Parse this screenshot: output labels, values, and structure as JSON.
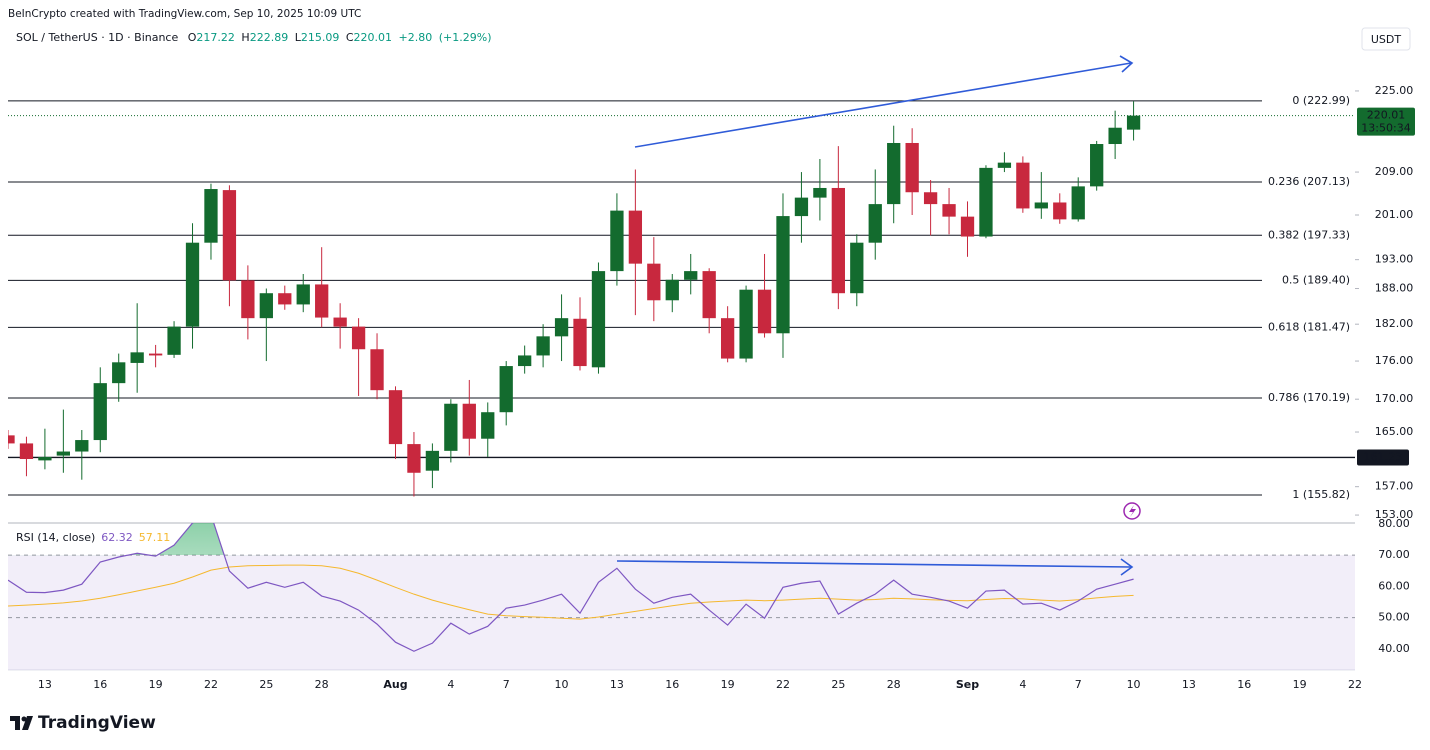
{
  "header": {
    "created": "BeInCrypto created with TradingView.com, Sep 10, 2025 10:09 UTC",
    "symbol": "SOL / TetherUS · 1D · Binance",
    "ohlc_labels": [
      "O",
      "H",
      "L",
      "C"
    ],
    "change": "+2.80",
    "change_pct": "(+1.29%)",
    "currency": "USDT",
    "logo": "TradingView"
  },
  "chart_data": [
    {
      "type": "candlestick",
      "log": true,
      "up_color": "#136b2e",
      "down_color": "#c8283e",
      "open": [
        164.5,
        163.3,
        160.8,
        161.5,
        162.1,
        163.8,
        172.5,
        175.7,
        177.2,
        177,
        181.6,
        196,
        205.6,
        189.4,
        183,
        187.2,
        185.3,
        188.7,
        183.1,
        181.6,
        177.9,
        171.4,
        163.2,
        159.3,
        162.2,
        169.3,
        164,
        168,
        175.2,
        176.9,
        180,
        182.9,
        175,
        191,
        201.8,
        192.3,
        186,
        189.5,
        191,
        183,
        176.4,
        187.8,
        180.5,
        200.8,
        204.2,
        206,
        187.2,
        196,
        203,
        214.6,
        205.2,
        203,
        200.7,
        197.1,
        209.8,
        210.8,
        202.2,
        203.3,
        200.2,
        206.3,
        214.4,
        217.22
      ],
      "high": [
        165.3,
        164.3,
        165.5,
        168.4,
        165.3,
        175,
        177.2,
        185.5,
        178.6,
        182.5,
        199.5,
        206.8,
        206.5,
        192,
        188,
        188.5,
        190.5,
        195.2,
        185.5,
        183,
        180.5,
        172,
        165,
        163.3,
        170,
        173,
        169.5,
        176,
        178.5,
        182,
        187,
        186.5,
        192.5,
        205,
        209.5,
        197,
        190.5,
        194,
        191.5,
        185,
        188.5,
        194,
        205,
        209,
        211.5,
        214,
        197.5,
        209.5,
        218,
        217.5,
        207.5,
        206,
        203.5,
        210.3,
        212.8,
        212,
        209,
        205,
        208,
        215,
        221,
        222.89
      ],
      "low": [
        162.5,
        158.5,
        159.5,
        159,
        158,
        162,
        169.6,
        171,
        175,
        176.5,
        178,
        193,
        185,
        179.5,
        176,
        184.4,
        184,
        181.5,
        178,
        170.5,
        170,
        161,
        155.6,
        156.8,
        160.5,
        161.5,
        161.3,
        166,
        174,
        175,
        176,
        174.5,
        174,
        188.5,
        183.5,
        182.5,
        184,
        187,
        180.5,
        175.8,
        175.8,
        179.8,
        176.5,
        196,
        200,
        184.5,
        185,
        193,
        199.5,
        201,
        197.3,
        197.5,
        193.5,
        196.8,
        209,
        201.4,
        200.3,
        199.4,
        199.8,
        205.5,
        211.5,
        215.09
      ],
      "close": [
        163.3,
        161.0,
        161.3,
        162.1,
        163.8,
        172.5,
        175.8,
        177.4,
        176.9,
        181.6,
        196,
        205.8,
        189.4,
        183,
        187.2,
        185.3,
        188.7,
        183.1,
        181.6,
        177.9,
        171.4,
        163.2,
        159,
        162.2,
        169.3,
        164,
        168,
        175.2,
        176.9,
        180,
        183,
        175.2,
        191,
        201.8,
        192.3,
        186,
        189.5,
        191,
        183,
        176.4,
        187.8,
        180.5,
        200.8,
        204.2,
        206,
        187.2,
        196,
        203,
        214.6,
        205.2,
        203,
        200.7,
        197.1,
        209.8,
        210.8,
        202.2,
        203.3,
        200.2,
        206.3,
        214.4,
        217.6,
        220.01
      ],
      "xlim": [
        0,
        73
      ],
      "ylim": [
        151.9,
        234.6
      ],
      "yticks": [
        {
          "value": 225,
          "label": "225.00"
        },
        {
          "value": 209,
          "label": "209.00"
        },
        {
          "value": 201,
          "label": "201.00"
        },
        {
          "value": 193,
          "label": "193.00"
        },
        {
          "value": 188,
          "label": "188.00"
        },
        {
          "value": 182,
          "label": "182.00"
        },
        {
          "value": 176,
          "label": "176.00"
        },
        {
          "value": 170,
          "label": "170.00"
        },
        {
          "value": 165,
          "label": "165.00"
        },
        {
          "value": 157,
          "label": "157.00"
        },
        {
          "value": 153,
          "label": "153.00"
        }
      ],
      "xticks": [
        {
          "value": 2,
          "label": "13"
        },
        {
          "value": 5,
          "label": "16"
        },
        {
          "value": 8,
          "label": "19"
        },
        {
          "value": 11,
          "label": "22"
        },
        {
          "value": 14,
          "label": "25"
        },
        {
          "value": 17,
          "label": "28"
        },
        {
          "value": 21,
          "label": "Aug"
        },
        {
          "value": 24,
          "label": "4"
        },
        {
          "value": 27,
          "label": "7"
        },
        {
          "value": 30,
          "label": "10"
        },
        {
          "value": 33,
          "label": "13"
        },
        {
          "value": 36,
          "label": "16"
        },
        {
          "value": 39,
          "label": "19"
        },
        {
          "value": 42,
          "label": "22"
        },
        {
          "value": 45,
          "label": "25"
        },
        {
          "value": 48,
          "label": "28"
        },
        {
          "value": 52,
          "label": "Sep"
        },
        {
          "value": 55,
          "label": "4"
        },
        {
          "value": 58,
          "label": "7"
        },
        {
          "value": 61,
          "label": "10"
        },
        {
          "value": 64,
          "label": "13"
        },
        {
          "value": 67,
          "label": "16"
        },
        {
          "value": 70,
          "label": "19"
        },
        {
          "value": 73,
          "label": "22"
        }
      ],
      "levels": [
        {
          "value": 222.99,
          "label": "0 (222.99)"
        },
        {
          "value": 207.13,
          "label": "0.236 (207.13)"
        },
        {
          "value": 197.33,
          "label": "0.382 (197.33)"
        },
        {
          "value": 189.4,
          "label": "0.5 (189.40)"
        },
        {
          "value": 181.47,
          "label": "0.618 (181.47)"
        },
        {
          "value": 170.19,
          "label": "0.786 (170.19)"
        },
        {
          "value": 155.82,
          "label": "1 (155.82)"
        }
      ],
      "hline": 161.23,
      "countdown": "13:50:34"
    },
    {
      "type": "line",
      "title": "RSI (14, close)",
      "series": [
        {
          "color": "#7e57c2",
          "values": [
            62,
            58.1,
            58,
            58.8,
            60.7,
            67.8,
            69.4,
            70.6,
            69.7,
            73.2,
            80.3,
            83,
            64.9,
            59.4,
            61.3,
            59.7,
            61.3,
            56.9,
            55.3,
            52.4,
            47.9,
            42.1,
            39.2,
            41.8,
            48.2,
            44.7,
            47.2,
            53,
            54,
            55.6,
            57.5,
            51.4,
            61.3,
            65.8,
            59.1,
            54.6,
            56.5,
            57.5,
            52.4,
            47.6,
            54.3,
            49.8,
            59.7,
            61,
            61.7,
            51.1,
            54.6,
            57.5,
            62,
            57.5,
            56.5,
            55.3,
            53,
            58.5,
            58.8,
            54.3,
            54.6,
            52.4,
            55.3,
            59.1,
            60.7,
            62.32
          ]
        },
        {
          "color": "#f5b82e",
          "values": [
            53.7,
            54,
            54.3,
            54.7,
            55.3,
            56.2,
            57.3,
            58.5,
            59.7,
            61,
            63,
            65.2,
            66.2,
            66.6,
            66.7,
            66.8,
            66.8,
            66.6,
            65.8,
            64.2,
            62,
            59.7,
            57.5,
            55.6,
            54,
            52.5,
            51.1,
            50.6,
            50.3,
            50.1,
            49.8,
            49.5,
            50.2,
            51.1,
            52,
            52.9,
            53.8,
            54.6,
            55,
            55.3,
            55.6,
            55.4,
            55.6,
            55.9,
            56.2,
            55.9,
            55.6,
            55.8,
            56.2,
            56,
            55.7,
            55.5,
            55.4,
            55.8,
            56.1,
            56,
            55.6,
            55.3,
            55.7,
            56.3,
            56.8,
            57.11
          ]
        }
      ],
      "xlim": [
        0,
        73
      ],
      "ylim": [
        33.2,
        80.3
      ],
      "yticks": [
        {
          "value": 80,
          "label": "80.00"
        },
        {
          "value": 70,
          "label": "70.00"
        },
        {
          "value": 60,
          "label": "60.00"
        },
        {
          "value": 50,
          "label": "50.00"
        },
        {
          "value": 40,
          "label": "40.00"
        }
      ],
      "band": [
        30,
        70
      ],
      "dashed": [
        70,
        50
      ],
      "overbought_color": "#26a65b"
    }
  ]
}
